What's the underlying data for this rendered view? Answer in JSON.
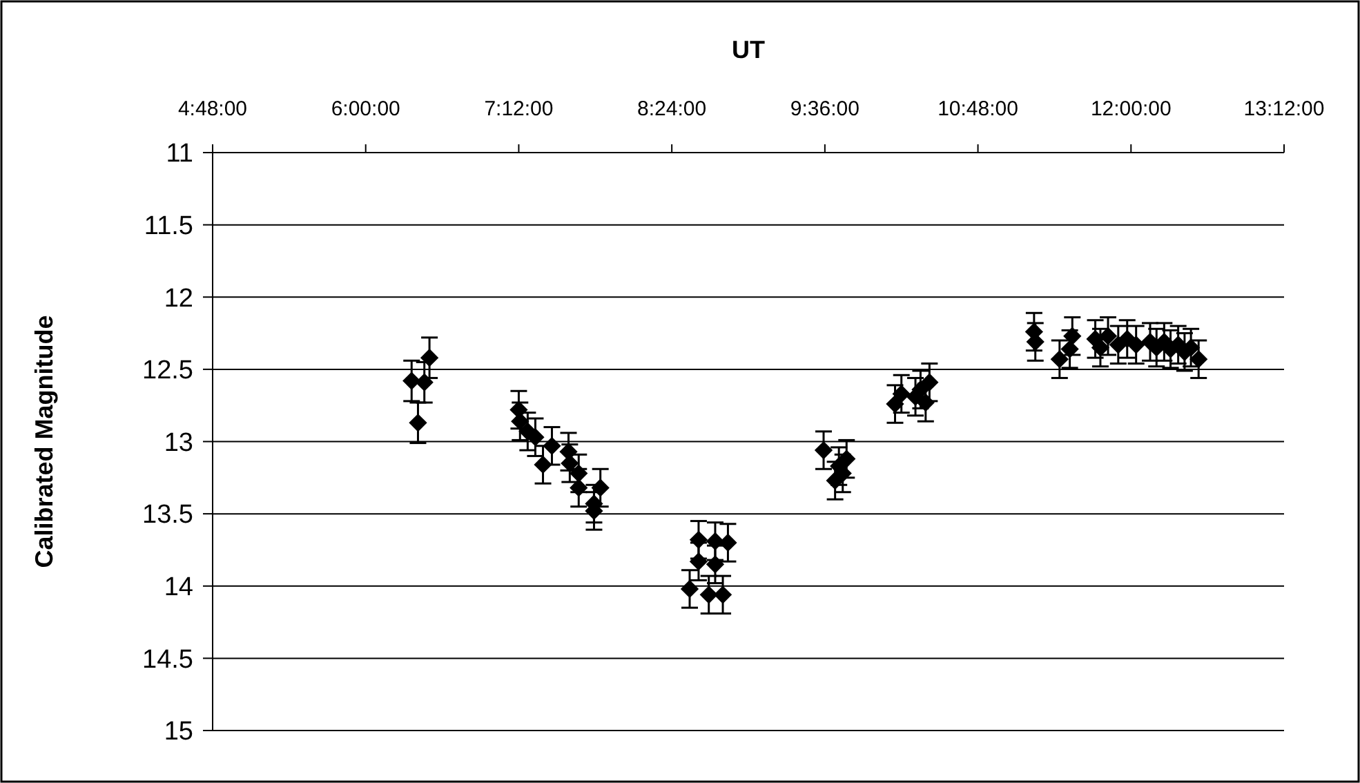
{
  "chart_data": {
    "type": "scatter",
    "xlabel": "UT",
    "ylabel": "Calibrated Magnitude",
    "x": [
      6.36,
      6.41,
      6.46,
      6.5,
      7.2,
      7.21,
      7.27,
      7.33,
      7.39,
      7.46,
      7.59,
      7.6,
      7.67,
      7.67,
      7.79,
      7.79,
      7.84,
      8.54,
      8.61,
      8.61,
      8.69,
      8.74,
      8.74,
      8.8,
      8.84,
      9.59,
      9.68,
      9.71,
      9.74,
      9.77,
      10.15,
      10.2,
      10.28,
      10.31,
      10.35,
      10.39,
      10.42,
      11.24,
      11.25,
      11.44,
      11.52,
      11.54,
      11.72,
      11.76,
      11.82,
      11.9,
      11.97,
      12.04,
      12.15,
      12.2,
      12.26,
      12.31,
      12.37,
      12.42,
      12.47,
      12.53
    ],
    "values": [
      12.58,
      12.87,
      12.59,
      12.42,
      12.78,
      12.86,
      12.93,
      12.97,
      13.16,
      13.03,
      13.07,
      13.15,
      13.22,
      13.32,
      13.48,
      13.43,
      13.32,
      14.02,
      13.68,
      13.83,
      14.06,
      13.69,
      13.85,
      14.06,
      13.7,
      13.06,
      13.27,
      13.17,
      13.22,
      13.12,
      12.74,
      12.67,
      null,
      12.69,
      12.64,
      12.73,
      12.59,
      12.24,
      12.31,
      12.43,
      12.36,
      12.27,
      12.29,
      12.35,
      12.27,
      12.33,
      12.29,
      12.33,
      12.31,
      12.35,
      12.31,
      12.36,
      12.33,
      12.38,
      12.35,
      12.43
    ],
    "errors": [
      0.14,
      0.14,
      0.14,
      0.14,
      0.13,
      0.13,
      0.13,
      0.13,
      0.13,
      0.13,
      0.13,
      0.13,
      0.13,
      0.13,
      0.13,
      0.13,
      0.13,
      0.13,
      0.13,
      0.13,
      0.13,
      0.13,
      0.13,
      0.13,
      0.13,
      0.13,
      0.13,
      0.13,
      0.13,
      0.13,
      0.13,
      0.13,
      null,
      0.13,
      0.13,
      0.13,
      0.13,
      0.13,
      0.13,
      0.13,
      0.13,
      0.13,
      0.13,
      0.13,
      0.13,
      0.13,
      0.13,
      0.13,
      0.13,
      0.13,
      0.13,
      0.13,
      0.13,
      0.13,
      0.13,
      0.13
    ],
    "color": "#000000",
    "marker": "diamond",
    "grid": "y",
    "xlim": [
      4.8,
      13.2
    ],
    "xticks": [
      {
        "value": 4.8,
        "label": "4:48:00"
      },
      {
        "value": 6,
        "label": "6:00:00"
      },
      {
        "value": 7.2,
        "label": "7:12:00"
      },
      {
        "value": 8.4,
        "label": "8:24:00"
      },
      {
        "value": 9.6,
        "label": "9:36:00"
      },
      {
        "value": 10.8,
        "label": "10:48:00"
      },
      {
        "value": 12,
        "label": "12:00:00"
      },
      {
        "value": 13.2,
        "label": "13:12:00"
      }
    ],
    "ylim": [
      15,
      11
    ],
    "yticks": [
      11,
      11.5,
      12,
      12.5,
      13,
      13.5,
      14,
      14.5,
      15
    ]
  }
}
